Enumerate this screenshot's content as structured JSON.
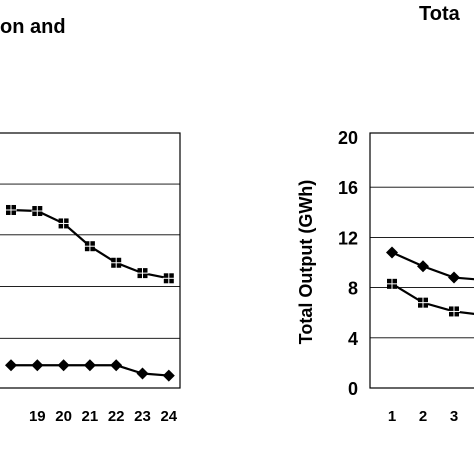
{
  "chart_data": [
    {
      "type": "line",
      "title": "on and",
      "xlabel": "",
      "ylabel": "",
      "x": [
        19,
        20,
        21,
        22,
        23,
        24
      ],
      "x_ticks": [
        "19",
        "20",
        "21",
        "22",
        "23",
        "24"
      ],
      "grid": true,
      "series": [
        {
          "marker": "square",
          "x": [
            18,
            19,
            20,
            21,
            22,
            23,
            24
          ],
          "values": [
            17.2,
            17.1,
            15.9,
            13.7,
            12.1,
            11.1,
            10.6
          ]
        },
        {
          "marker": "diamond",
          "x": [
            18,
            19,
            20,
            21,
            22,
            23,
            24
          ],
          "values": [
            2.2,
            2.2,
            2.2,
            2.2,
            2.2,
            1.4,
            1.2
          ]
        }
      ],
      "note": "left panel y tick labels are cut off in the image"
    },
    {
      "type": "line",
      "title": "Tota",
      "ylabel": "Total Output (GWh)",
      "xlabel": "",
      "x_ticks": [
        "1",
        "2",
        "3"
      ],
      "y_ticks": [
        "0",
        "4",
        "8",
        "12",
        "16",
        "20"
      ],
      "ylim": [
        0,
        20
      ],
      "grid": true,
      "series": [
        {
          "marker": "diamond",
          "x": [
            1,
            2,
            3,
            4
          ],
          "values": [
            10.8,
            9.7,
            8.8,
            8.6
          ]
        },
        {
          "marker": "square",
          "x": [
            1,
            2,
            3,
            4
          ],
          "values": [
            8.3,
            6.8,
            6.1,
            5.8
          ]
        }
      ]
    }
  ]
}
